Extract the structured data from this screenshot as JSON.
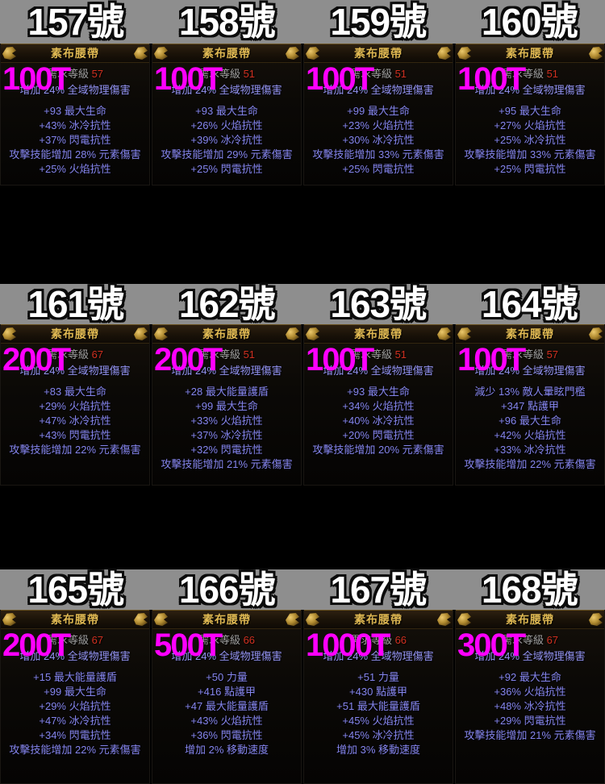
{
  "colors": {
    "band_grey": "#8e8e8e",
    "price_magenta": "#ff00ff",
    "title_gold": "#dfb852",
    "mod_blue": "#8585ee",
    "req_grey": "#a0a0a0",
    "level_red": "#d03020",
    "background": "#000000"
  },
  "req_label": "需求等級",
  "rows": [
    {
      "items": [
        {
          "number": "157號",
          "price": "100T",
          "name": "素布腰帶",
          "req_level": "57",
          "implicit": "增加 24% 全域物理傷害",
          "mods": [
            "+93 最大生命",
            "+43% 冰冷抗性",
            "+37% 閃電抗性",
            "攻擊技能增加 28% 元素傷害",
            "+25% 火焰抗性"
          ]
        },
        {
          "number": "158號",
          "price": "100T",
          "name": "素布腰帶",
          "req_level": "51",
          "implicit": "增加 24% 全域物理傷害",
          "mods": [
            "+93 最大生命",
            "+26% 火焰抗性",
            "+39% 冰冷抗性",
            "攻擊技能增加 29% 元素傷害",
            "+25% 閃電抗性"
          ]
        },
        {
          "number": "159號",
          "price": "100T",
          "name": "素布腰帶",
          "req_level": "51",
          "implicit": "增加 24% 全域物理傷害",
          "mods": [
            "+99 最大生命",
            "+23% 火焰抗性",
            "+30% 冰冷抗性",
            "攻擊技能增加 33% 元素傷害",
            "+25% 閃電抗性"
          ]
        },
        {
          "number": "160號",
          "price": "100T",
          "name": "素布腰帶",
          "req_level": "51",
          "implicit": "增加 24% 全域物理傷害",
          "mods": [
            "+95 最大生命",
            "+27% 火焰抗性",
            "+25% 冰冷抗性",
            "攻擊技能增加 33% 元素傷害",
            "+25% 閃電抗性"
          ]
        }
      ]
    },
    {
      "items": [
        {
          "number": "161號",
          "price": "200T",
          "name": "素布腰帶",
          "req_level": "67",
          "implicit": "增加 24% 全域物理傷害",
          "mods": [
            "+83 最大生命",
            "+29% 火焰抗性",
            "+47% 冰冷抗性",
            "+43% 閃電抗性",
            "攻擊技能增加 22% 元素傷害"
          ]
        },
        {
          "number": "162號",
          "price": "200T",
          "name": "素布腰帶",
          "req_level": "51",
          "implicit": "增加 24% 全域物理傷害",
          "mods": [
            "+28 最大能量護盾",
            "+99 最大生命",
            "+33% 火焰抗性",
            "+37% 冰冷抗性",
            "+32% 閃電抗性",
            "攻擊技能增加 21% 元素傷害"
          ]
        },
        {
          "number": "163號",
          "price": "100T",
          "name": "素布腰帶",
          "req_level": "51",
          "implicit": "增加 24% 全域物理傷害",
          "mods": [
            "+93 最大生命",
            "+34% 火焰抗性",
            "+40% 冰冷抗性",
            "+20% 閃電抗性",
            "攻擊技能增加 20% 元素傷害"
          ]
        },
        {
          "number": "164號",
          "price": "100T",
          "name": "素布腰帶",
          "req_level": "57",
          "implicit": "增加 24% 全域物理傷害",
          "mods": [
            "減少 13% 敵人暈眩門檻",
            "+347 點護甲",
            "+96 最大生命",
            "+42% 火焰抗性",
            "+33% 冰冷抗性",
            "攻擊技能增加 22% 元素傷害"
          ]
        }
      ]
    },
    {
      "items": [
        {
          "number": "165號",
          "price": "200T",
          "name": "素布腰帶",
          "req_level": "67",
          "implicit": "增加 24% 全域物理傷害",
          "mods": [
            "+15 最大能量護盾",
            "+99 最大生命",
            "+29% 火焰抗性",
            "+47% 冰冷抗性",
            "+34% 閃電抗性",
            "攻擊技能增加 22% 元素傷害"
          ]
        },
        {
          "number": "166號",
          "price": "500T",
          "name": "素布腰帶",
          "req_level": "66",
          "implicit": "增加 24% 全域物理傷害",
          "mods": [
            "+50 力量",
            "+416 點護甲",
            "+47 最大能量護盾",
            "+43% 火焰抗性",
            "+36% 閃電抗性",
            "增加 2% 移動速度"
          ]
        },
        {
          "number": "167號",
          "price": "1000T",
          "name": "素布腰帶",
          "req_level": "66",
          "implicit": "增加 24% 全域物理傷害",
          "mods": [
            "+51 力量",
            "+430 點護甲",
            "+51 最大能量護盾",
            "+45% 火焰抗性",
            "+45% 冰冷抗性",
            "增加 3% 移動速度"
          ]
        },
        {
          "number": "168號",
          "price": "300T",
          "name": "素布腰帶",
          "req_level": "67",
          "implicit": "增加 24% 全域物理傷害",
          "mods": [
            "+92 最大生命",
            "+36% 火焰抗性",
            "+48% 冰冷抗性",
            "+29% 閃電抗性",
            "攻擊技能增加 21% 元素傷害"
          ]
        }
      ]
    }
  ]
}
